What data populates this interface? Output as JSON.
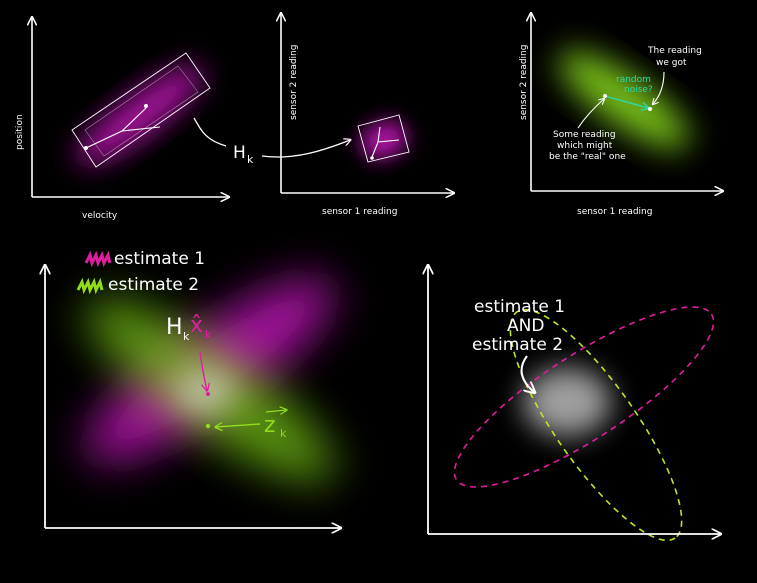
{
  "colors": {
    "background": "#000000",
    "axis": "#ffffff",
    "magenta": "#e01ea0",
    "green": "#8fdc1c",
    "teal": "#2bd9a8",
    "overlap": "#dddddd"
  },
  "panel1": {
    "ylabel": "position",
    "xlabel": "velocity"
  },
  "transform_label": {
    "main": "H",
    "sub": "k"
  },
  "panel2": {
    "ylabel": "sensor 2 reading",
    "xlabel": "sensor 1 reading"
  },
  "panel3": {
    "ylabel": "sensor 2 reading",
    "xlabel": "sensor 1 reading",
    "noise_label_1": "random",
    "noise_label_2": "noise?",
    "reading_we_got_1": "The reading",
    "reading_we_got_2": "we got",
    "real_1": "Some reading",
    "real_2": "which might",
    "real_3": "be the \"real\" one"
  },
  "legend": {
    "estimate1": "estimate 1",
    "estimate2": "estimate 2"
  },
  "panel4": {
    "h_main": "H",
    "h_sub": "k",
    "x_main": "x̂",
    "x_sub": "k",
    "z_main": "z",
    "z_sub": "k"
  },
  "panel5": {
    "line1": "estimate 1",
    "line2": "AND",
    "line3": "estimate 2"
  }
}
